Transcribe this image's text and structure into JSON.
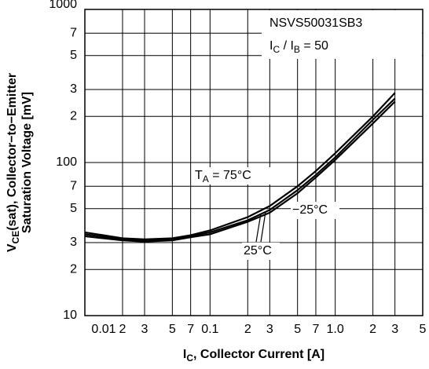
{
  "chart_data": {
    "type": "line",
    "log_x": true,
    "log_y": true,
    "grid": true,
    "x": [
      0.01,
      0.02,
      0.03,
      0.05,
      0.07,
      0.1,
      0.2,
      0.3,
      0.5,
      0.7,
      1,
      2,
      3
    ],
    "series": [
      {
        "name": [
          {
            "t": "T"
          },
          {
            "t": "A",
            "sub": true
          },
          {
            "t": " = 75°C"
          }
        ],
        "color": "#000000",
        "values": [
          35,
          32,
          31.5,
          32,
          33.5,
          36,
          44,
          52,
          70,
          88,
          115,
          200,
          285
        ]
      },
      {
        "name": [
          {
            "t": "25°C"
          }
        ],
        "color": "#000000",
        "values": [
          34,
          31.5,
          31,
          31.5,
          33,
          35,
          42,
          49,
          66,
          83,
          108,
          190,
          262
        ]
      },
      {
        "name": [
          {
            "t": "−25°C"
          }
        ],
        "color": "#000000",
        "values": [
          33,
          31,
          30.5,
          31,
          32.5,
          34,
          41,
          47,
          63,
          80,
          104,
          180,
          250
        ]
      }
    ],
    "annotations": [
      [
        {
          "t": "NSVS50031SB3"
        }
      ],
      [
        {
          "t": "I"
        },
        {
          "t": "C",
          "sub": true
        },
        {
          "t": " / I"
        },
        {
          "t": "B",
          "sub": true
        },
        {
          "t": " = 50"
        }
      ]
    ],
    "xlabel": [
      {
        "t": "I"
      },
      {
        "t": "C",
        "sub": true
      },
      {
        "t": ", Collector Current [A]"
      }
    ],
    "ylabel": [
      [
        {
          "t": "V"
        },
        {
          "t": "CE",
          "sub": true
        },
        {
          "t": "(sat), Collector−to−Emitter"
        }
      ],
      [
        {
          "t": "Saturation Voltage [mV]"
        }
      ]
    ],
    "xlim": [
      0.01,
      5
    ],
    "ylim": [
      10,
      1000
    ],
    "xticks": [
      0.01,
      {
        "value": 0.02,
        "label": "2"
      },
      {
        "value": 0.03,
        "label": "3"
      },
      {
        "value": 0.05,
        "label": "5"
      },
      {
        "value": 0.07,
        "label": "7"
      },
      0.1,
      {
        "value": 0.2,
        "label": "2"
      },
      {
        "value": 0.3,
        "label": "3"
      },
      {
        "value": 0.5,
        "label": "5"
      },
      {
        "value": 0.7,
        "label": "7"
      },
      {
        "value": 1,
        "label": "1.0"
      },
      2,
      3,
      5
    ],
    "yticks": [
      10,
      {
        "value": 20,
        "label": "2"
      },
      {
        "value": 30,
        "label": "3"
      },
      {
        "value": 50,
        "label": "5"
      },
      {
        "value": 70,
        "label": "7"
      },
      100,
      {
        "value": 200,
        "label": "2"
      },
      {
        "value": 300,
        "label": "3"
      },
      {
        "value": 500,
        "label": "5"
      },
      {
        "value": 700,
        "label": "7"
      },
      1000
    ]
  }
}
